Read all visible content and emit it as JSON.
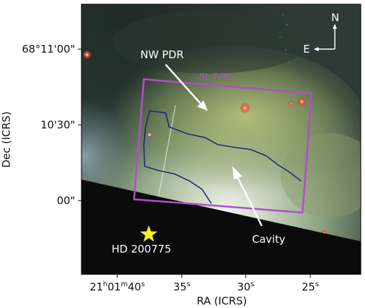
{
  "figure": {
    "x_axis_label": "RA (ICRS)",
    "y_axis_label": "Dec (ICRS)",
    "x_ticks": [
      {
        "h": "21",
        "h_unit": "h",
        "m": "01",
        "m_unit": "m",
        "s": "40",
        "s_unit": "s"
      },
      {
        "s": "35",
        "s_unit": "s"
      },
      {
        "s": "30",
        "s_unit": "s"
      },
      {
        "s": "25",
        "s_unit": "s"
      }
    ],
    "y_ticks": [
      "68°11'00\"",
      "10'30\"",
      "00\""
    ],
    "annotations": {
      "nw_pdr": "NW PDR",
      "sl_fov": "SL FOV",
      "cavity": "Cavity",
      "star_name": "HD 200775"
    },
    "compass": {
      "north": "N",
      "east": "E"
    },
    "colors": {
      "fov_box": "#b04fc8",
      "contour": "#1e2a6e",
      "star_marker": "#f5ee20",
      "shadow": "#0b0b0b",
      "arrows": "#ffffff"
    }
  }
}
